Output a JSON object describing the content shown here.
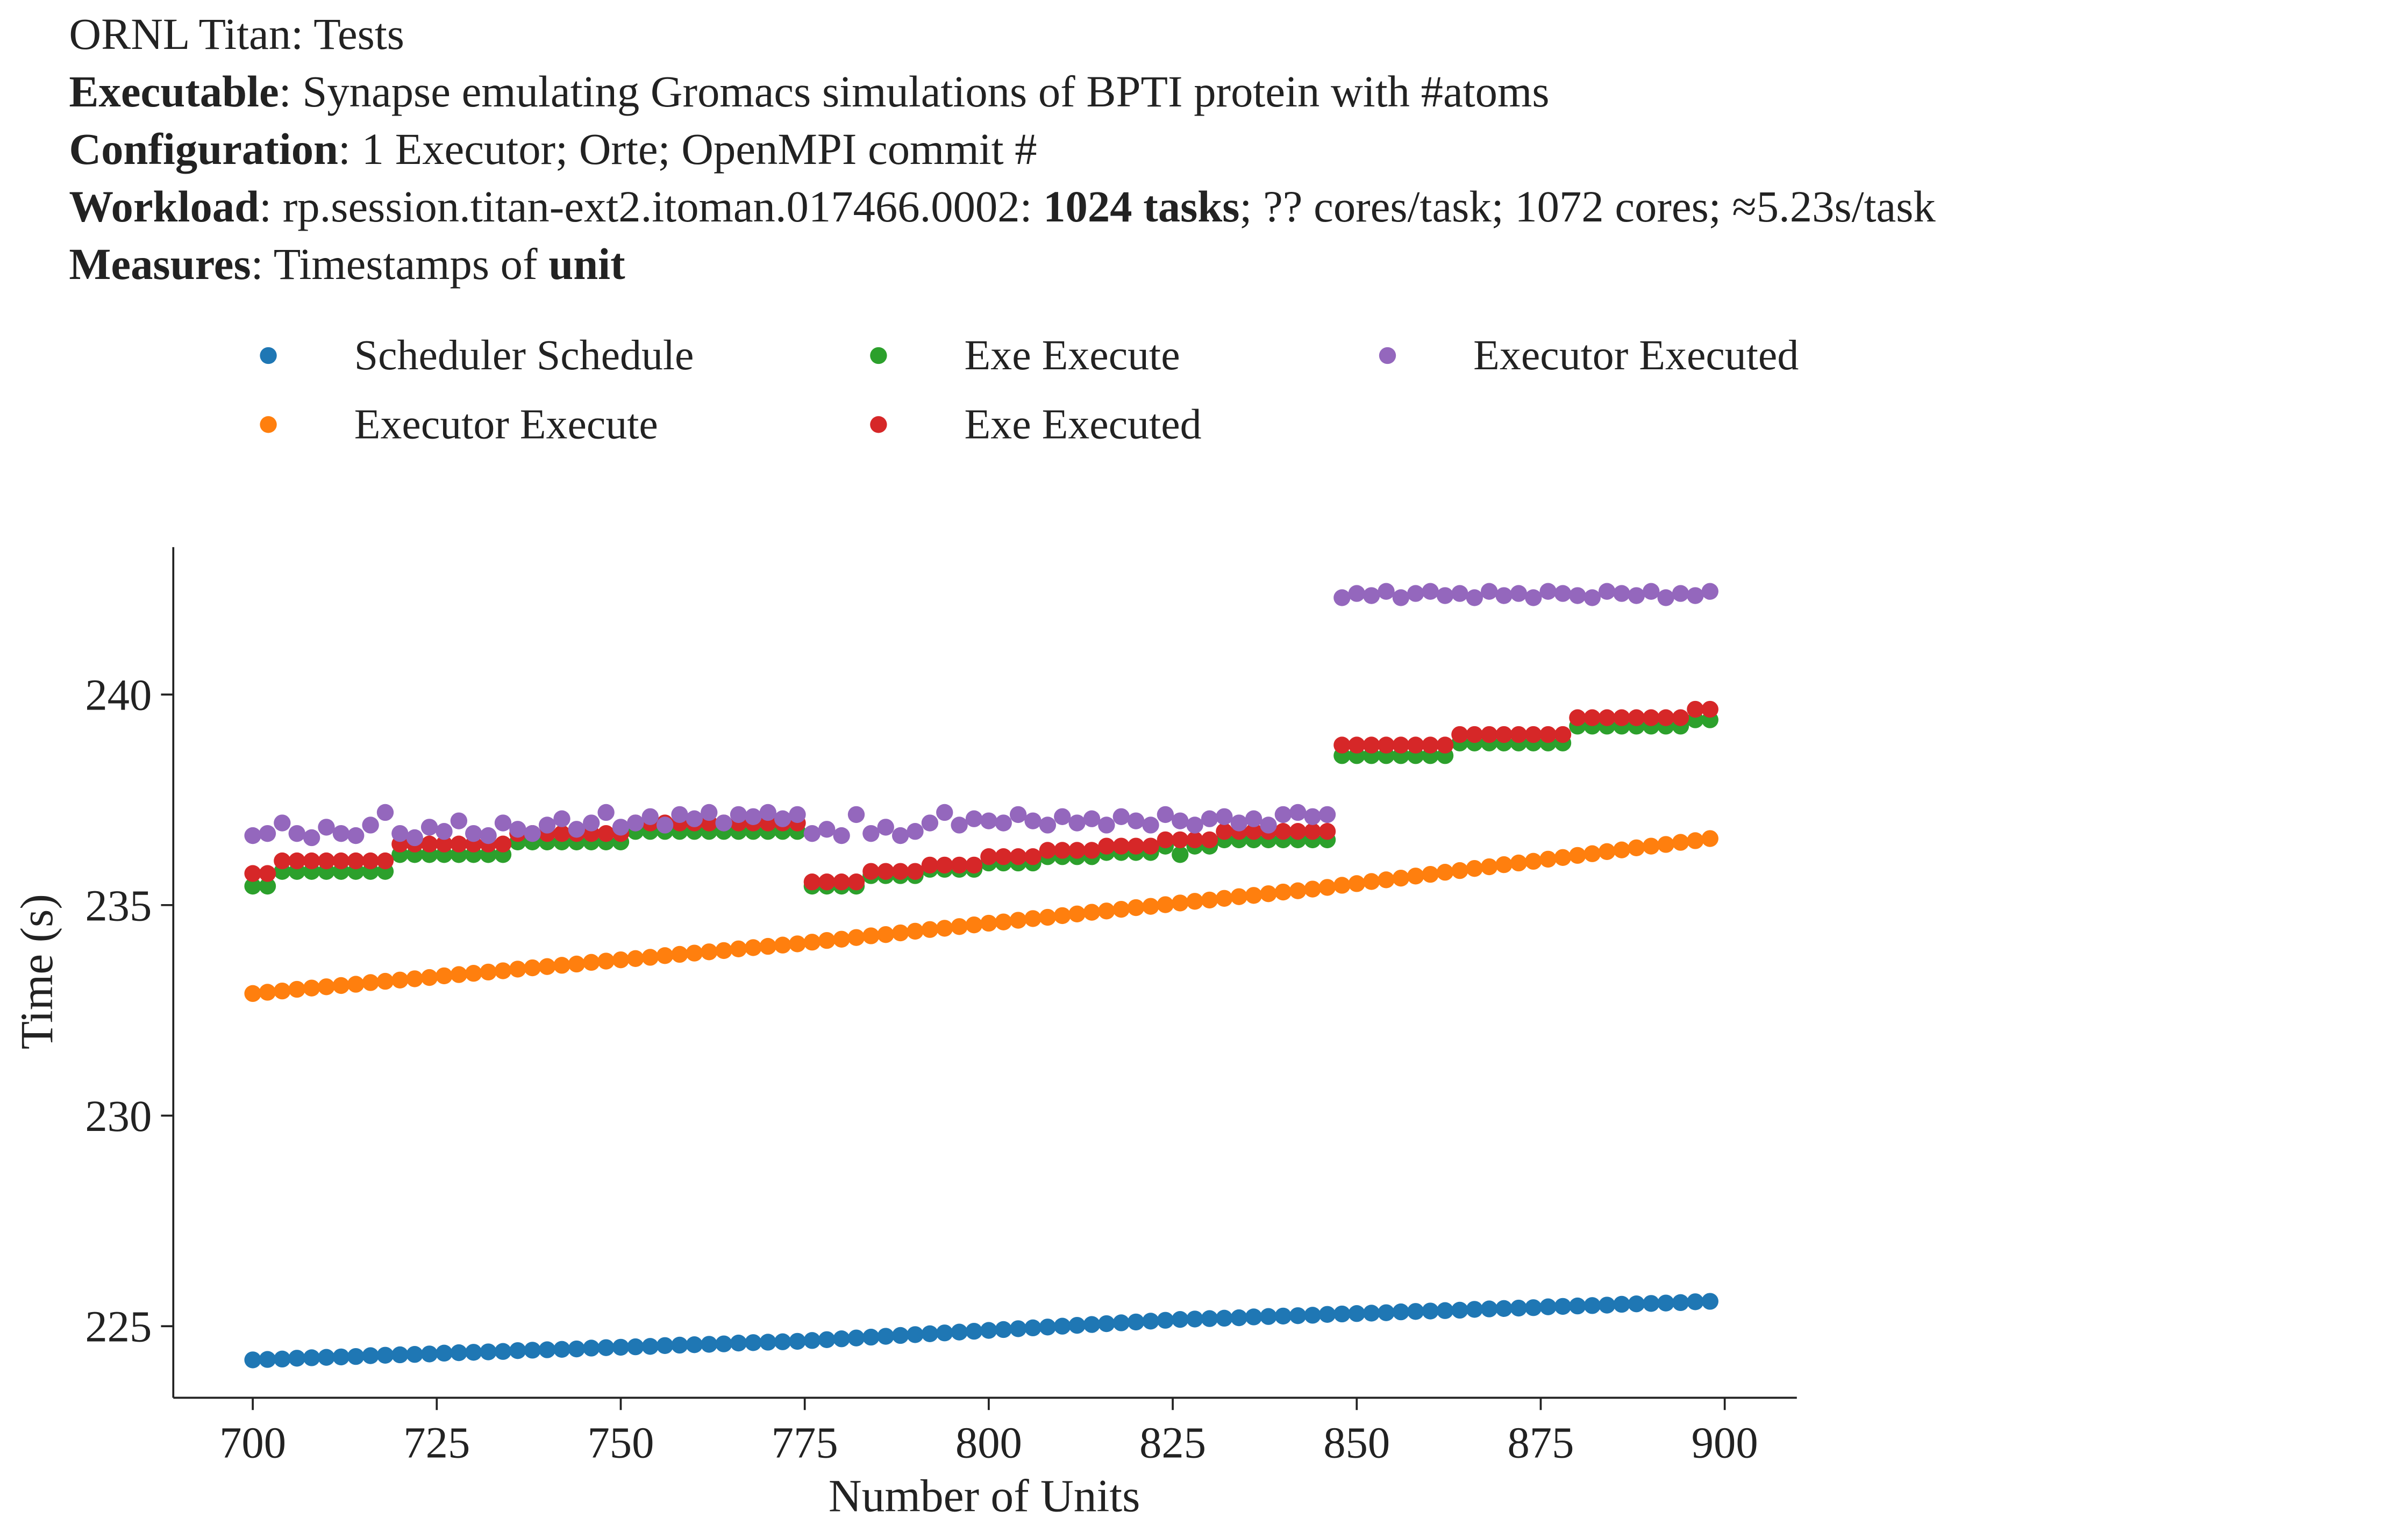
{
  "chart_data": {
    "type": "scatter",
    "title_lines": [
      [
        {
          "text": "ORNL Titan: Tests",
          "bold": false
        }
      ],
      [
        {
          "text": "Executable",
          "bold": true
        },
        {
          "text": ": Synapse emulating Gromacs simulations of BPTI protein with #atoms",
          "bold": false
        }
      ],
      [
        {
          "text": "Configuration",
          "bold": true
        },
        {
          "text": ": 1 Executor; Orte; OpenMPI commit #",
          "bold": false
        }
      ],
      [
        {
          "text": "Workload",
          "bold": true
        },
        {
          "text": ": rp.session.titan-ext2.itoman.017466.0002: ",
          "bold": false
        },
        {
          "text": "1024 tasks",
          "bold": true
        },
        {
          "text": "; ?? cores/task; 1072 cores; ≈5.23s/task",
          "bold": false
        }
      ],
      [
        {
          "text": "Measures",
          "bold": true
        },
        {
          "text": ": Timestamps of ",
          "bold": false
        },
        {
          "text": "unit",
          "bold": true
        }
      ]
    ],
    "x_label": "Number of Units",
    "y_label": "Time (s)",
    "xlim": [
      689.2,
      909.8
    ],
    "ylim": [
      223.3,
      243.5
    ],
    "xticks": [
      700,
      725,
      750,
      775,
      800,
      825,
      850,
      875,
      900
    ],
    "yticks": [
      225,
      230,
      235,
      240
    ],
    "grid": false,
    "legend_ncol": 3,
    "x": [
      700,
      702,
      704,
      706,
      708,
      710,
      712,
      714,
      716,
      718,
      720,
      722,
      724,
      726,
      728,
      730,
      732,
      734,
      736,
      738,
      740,
      742,
      744,
      746,
      748,
      750,
      752,
      754,
      756,
      758,
      760,
      762,
      764,
      766,
      768,
      770,
      772,
      774,
      776,
      778,
      780,
      782,
      784,
      786,
      788,
      790,
      792,
      794,
      796,
      798,
      800,
      802,
      804,
      806,
      808,
      810,
      812,
      814,
      816,
      818,
      820,
      822,
      824,
      826,
      828,
      830,
      832,
      834,
      836,
      838,
      840,
      842,
      844,
      846,
      848,
      850,
      852,
      854,
      856,
      858,
      860,
      862,
      864,
      866,
      868,
      870,
      872,
      874,
      876,
      878,
      880,
      882,
      884,
      886,
      888,
      890,
      892,
      894,
      896,
      898
    ],
    "series": [
      {
        "name": "Scheduler Schedule",
        "color": "#1f77b4",
        "values": [
          224.2,
          224.21,
          224.22,
          224.24,
          224.25,
          224.26,
          224.27,
          224.28,
          224.3,
          224.31,
          224.32,
          224.33,
          224.34,
          224.36,
          224.37,
          224.38,
          224.39,
          224.4,
          224.42,
          224.43,
          224.44,
          224.45,
          224.46,
          224.48,
          224.49,
          224.5,
          224.51,
          224.52,
          224.54,
          224.55,
          224.56,
          224.57,
          224.58,
          224.6,
          224.61,
          224.62,
          224.63,
          224.64,
          224.66,
          224.68,
          224.7,
          224.72,
          224.74,
          224.76,
          224.78,
          224.8,
          224.82,
          224.84,
          224.86,
          224.88,
          224.9,
          224.92,
          224.94,
          224.96,
          224.98,
          225.0,
          225.02,
          225.04,
          225.06,
          225.08,
          225.1,
          225.12,
          225.14,
          225.16,
          225.17,
          225.18,
          225.19,
          225.2,
          225.22,
          225.23,
          225.24,
          225.25,
          225.26,
          225.28,
          225.29,
          225.3,
          225.31,
          225.32,
          225.34,
          225.35,
          225.36,
          225.37,
          225.38,
          225.4,
          225.41,
          225.42,
          225.43,
          225.44,
          225.46,
          225.47,
          225.48,
          225.49,
          225.5,
          225.52,
          225.53,
          225.54,
          225.55,
          225.56,
          225.58,
          225.59
        ]
      },
      {
        "name": "Executor Execute",
        "color": "#ff7f0e",
        "values": [
          232.9,
          232.93,
          232.96,
          233.0,
          233.03,
          233.06,
          233.09,
          233.12,
          233.16,
          233.19,
          233.22,
          233.25,
          233.28,
          233.32,
          233.35,
          233.38,
          233.41,
          233.44,
          233.48,
          233.51,
          233.54,
          233.57,
          233.6,
          233.64,
          233.67,
          233.7,
          233.73,
          233.76,
          233.8,
          233.83,
          233.86,
          233.89,
          233.92,
          233.96,
          233.99,
          234.02,
          234.05,
          234.08,
          234.12,
          234.16,
          234.19,
          234.23,
          234.27,
          234.3,
          234.34,
          234.38,
          234.42,
          234.45,
          234.49,
          234.53,
          234.57,
          234.6,
          234.64,
          234.68,
          234.71,
          234.75,
          234.79,
          234.83,
          234.86,
          234.9,
          234.94,
          234.97,
          235.01,
          235.05,
          235.09,
          235.12,
          235.16,
          235.2,
          235.23,
          235.27,
          235.31,
          235.34,
          235.38,
          235.42,
          235.47,
          235.51,
          235.56,
          235.6,
          235.64,
          235.69,
          235.73,
          235.78,
          235.82,
          235.87,
          235.91,
          235.96,
          236.0,
          236.04,
          236.09,
          236.13,
          236.18,
          236.22,
          236.27,
          236.31,
          236.36,
          236.4,
          236.44,
          236.49,
          236.53,
          236.58
        ]
      },
      {
        "name": "Exe Execute",
        "color": "#2ca02c",
        "values": [
          235.45,
          235.45,
          235.8,
          235.8,
          235.8,
          235.8,
          235.8,
          235.8,
          235.8,
          235.8,
          236.2,
          236.2,
          236.2,
          236.2,
          236.2,
          236.2,
          236.2,
          236.2,
          236.5,
          236.5,
          236.5,
          236.5,
          236.5,
          236.5,
          236.5,
          236.5,
          236.75,
          236.75,
          236.75,
          236.75,
          236.75,
          236.75,
          236.75,
          236.75,
          236.75,
          236.75,
          236.75,
          236.75,
          235.45,
          235.45,
          235.45,
          235.45,
          235.7,
          235.7,
          235.7,
          235.7,
          235.85,
          235.85,
          235.85,
          235.85,
          236.0,
          236.0,
          236.0,
          236.0,
          236.15,
          236.15,
          236.15,
          236.15,
          236.25,
          236.25,
          236.25,
          236.25,
          236.4,
          236.2,
          236.4,
          236.4,
          236.55,
          236.55,
          236.55,
          236.55,
          236.55,
          236.55,
          236.55,
          236.55,
          238.55,
          238.55,
          238.55,
          238.55,
          238.55,
          238.55,
          238.55,
          238.55,
          238.85,
          238.85,
          238.85,
          238.85,
          238.85,
          238.85,
          238.85,
          238.85,
          239.25,
          239.25,
          239.25,
          239.25,
          239.25,
          239.25,
          239.25,
          239.25,
          239.4,
          239.4
        ]
      },
      {
        "name": "Exe Executed",
        "color": "#d62728",
        "values": [
          235.75,
          235.75,
          236.05,
          236.05,
          236.05,
          236.05,
          236.05,
          236.05,
          236.05,
          236.05,
          236.45,
          236.45,
          236.45,
          236.45,
          236.45,
          236.45,
          236.45,
          236.45,
          236.7,
          236.7,
          236.7,
          236.7,
          236.7,
          236.7,
          236.7,
          236.7,
          236.95,
          236.95,
          236.95,
          236.95,
          236.95,
          236.95,
          236.95,
          236.95,
          236.95,
          236.95,
          236.95,
          236.95,
          235.55,
          235.55,
          235.55,
          235.55,
          235.8,
          235.8,
          235.8,
          235.8,
          235.95,
          235.95,
          235.95,
          235.95,
          236.15,
          236.15,
          236.15,
          236.15,
          236.3,
          236.3,
          236.3,
          236.3,
          236.4,
          236.4,
          236.4,
          236.4,
          236.55,
          236.55,
          236.55,
          236.55,
          236.75,
          236.75,
          236.75,
          236.75,
          236.75,
          236.75,
          236.75,
          236.75,
          238.8,
          238.8,
          238.8,
          238.8,
          238.8,
          238.8,
          238.8,
          238.8,
          239.05,
          239.05,
          239.05,
          239.05,
          239.05,
          239.05,
          239.05,
          239.05,
          239.45,
          239.45,
          239.45,
          239.45,
          239.45,
          239.45,
          239.45,
          239.45,
          239.65,
          239.65
        ]
      },
      {
        "name": "Executor Executed",
        "color": "#9467bd",
        "values": [
          236.65,
          236.7,
          236.95,
          236.7,
          236.6,
          236.85,
          236.7,
          236.65,
          236.9,
          237.2,
          236.7,
          236.6,
          236.85,
          236.75,
          237.0,
          236.7,
          236.65,
          236.95,
          236.8,
          236.7,
          236.9,
          237.05,
          236.8,
          236.95,
          237.2,
          236.85,
          236.95,
          237.1,
          236.9,
          237.15,
          237.05,
          237.2,
          236.95,
          237.15,
          237.1,
          237.2,
          237.05,
          237.15,
          236.7,
          236.8,
          236.65,
          237.15,
          236.7,
          236.85,
          236.65,
          236.75,
          236.95,
          237.2,
          236.9,
          237.05,
          237.0,
          236.95,
          237.15,
          237.0,
          236.9,
          237.1,
          236.95,
          237.05,
          236.9,
          237.1,
          237.0,
          236.9,
          237.15,
          237.0,
          236.9,
          237.05,
          237.1,
          236.95,
          237.05,
          236.9,
          237.15,
          237.2,
          237.1,
          237.15,
          242.3,
          242.4,
          242.35,
          242.45,
          242.3,
          242.4,
          242.45,
          242.35,
          242.4,
          242.3,
          242.45,
          242.35,
          242.4,
          242.3,
          242.45,
          242.4,
          242.35,
          242.3,
          242.45,
          242.4,
          242.35,
          242.45,
          242.3,
          242.4,
          242.35,
          242.45
        ]
      }
    ]
  }
}
